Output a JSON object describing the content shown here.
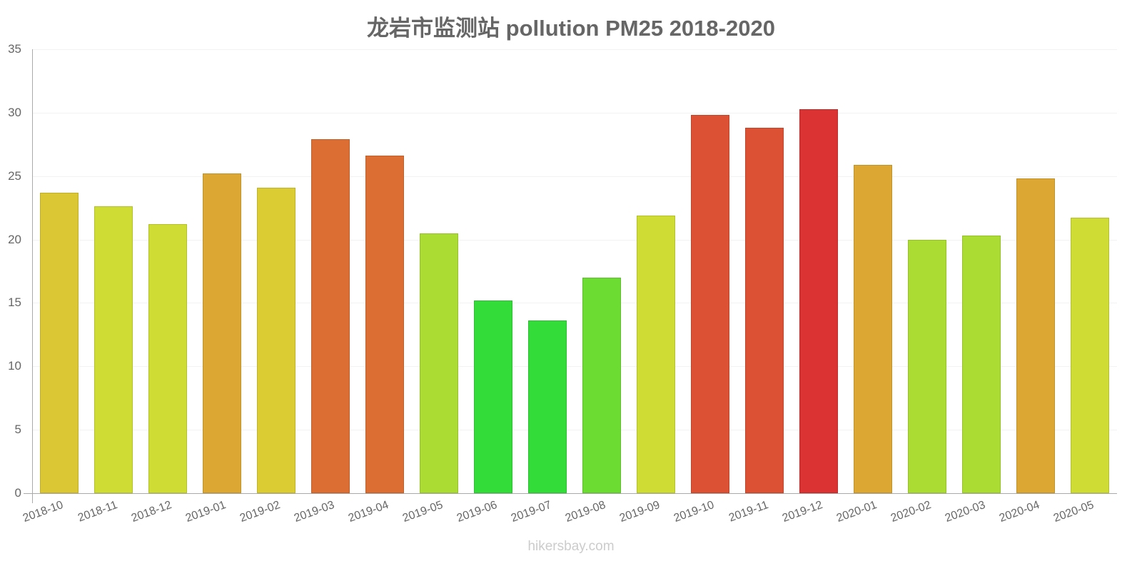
{
  "title": "龙岩市监测站 pollution PM25 2018-2020",
  "watermark": "hikersbay.com",
  "chart_data": {
    "type": "bar",
    "title": "龙岩市监测站 pollution PM25 2018-2020",
    "xlabel": "",
    "ylabel": "",
    "ylim": [
      0,
      35
    ],
    "yticks": [
      0,
      5,
      10,
      15,
      20,
      25,
      30,
      35
    ],
    "grid": true,
    "legend": "none",
    "categories": [
      "2018-10",
      "2018-11",
      "2018-12",
      "2019-01",
      "2019-02",
      "2019-03",
      "2019-04",
      "2019-05",
      "2019-06",
      "2019-07",
      "2019-08",
      "2019-09",
      "2019-10",
      "2019-11",
      "2019-12",
      "2020-01",
      "2020-02",
      "2020-03",
      "2020-04",
      "2020-05"
    ],
    "values": [
      23.7,
      22.6,
      21.2,
      25.2,
      24.1,
      27.9,
      26.6,
      20.5,
      15.2,
      13.6,
      17.0,
      21.9,
      29.8,
      28.8,
      30.3,
      25.9,
      20.0,
      20.3,
      24.8,
      21.7
    ],
    "colors": [
      "#dbc733",
      "#cfdc33",
      "#cfdc33",
      "#dca733",
      "#dbcc33",
      "#dd6e33",
      "#dd6e33",
      "#abdc33",
      "#33dc38",
      "#33dc38",
      "#6cdc33",
      "#cfdc33",
      "#dc5033",
      "#dc5033",
      "#db3333",
      "#dca733",
      "#abdc33",
      "#abdc33",
      "#dca733",
      "#cfdc33"
    ]
  }
}
